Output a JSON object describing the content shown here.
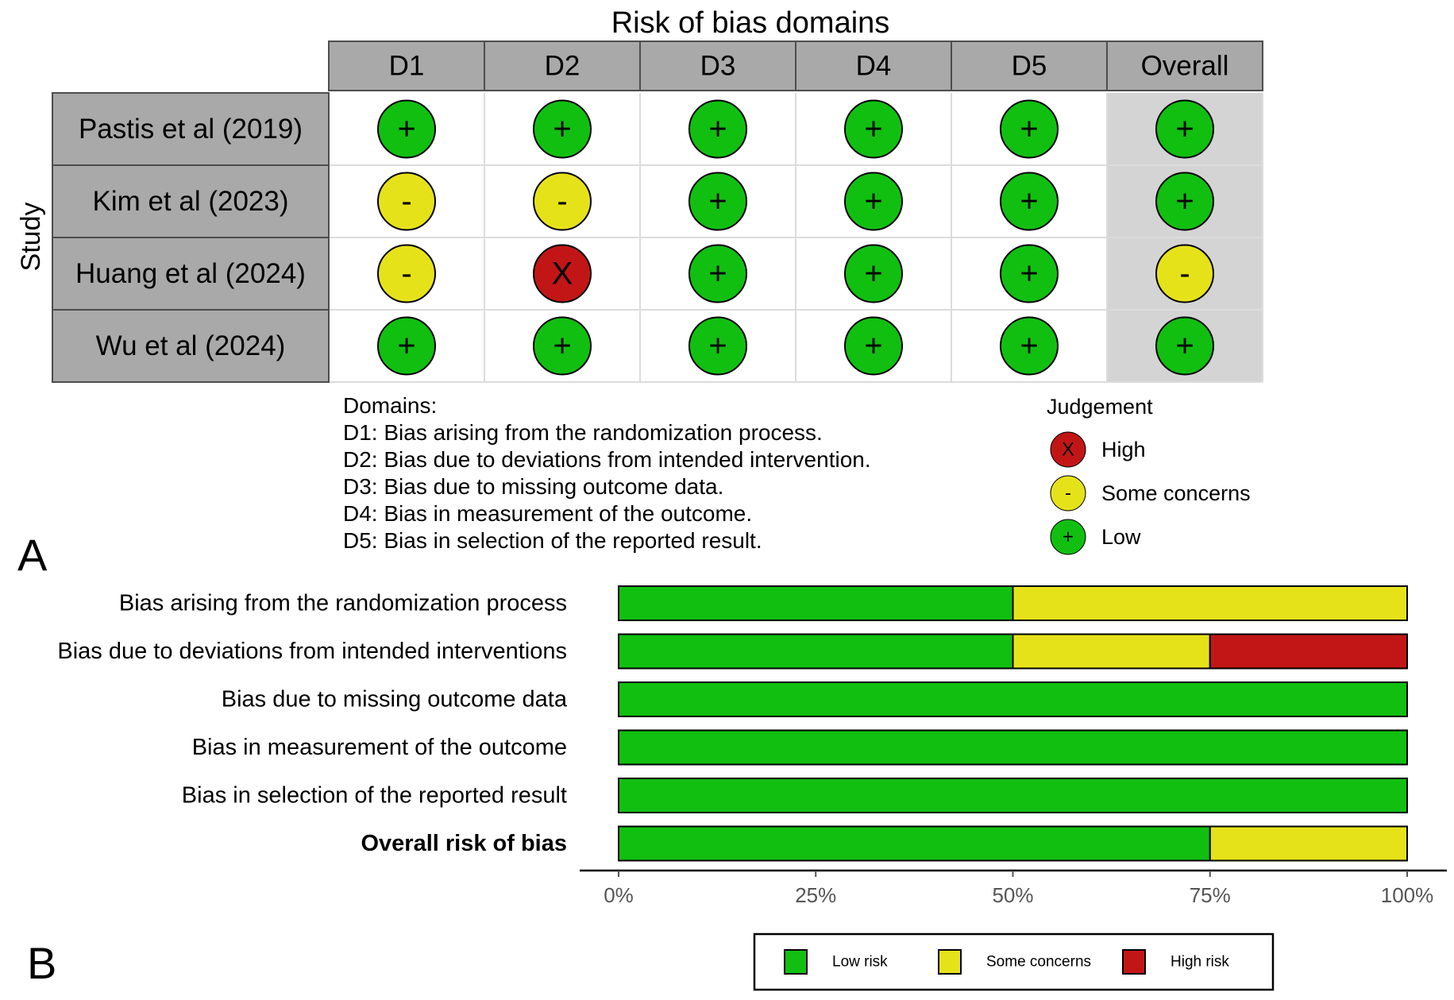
{
  "colors": {
    "low": "#11bf11",
    "some_concerns": "#e6e21a",
    "high": "#c21616",
    "header_fill": "#a9a9a9",
    "row_label_fill": "#a9a9a9",
    "overall_col_fill": "#d4d4d4",
    "grid_line": "#dcdcdc",
    "border": "#4d4d4d"
  },
  "panel_a": {
    "panel_label": "A",
    "title": "Risk of bias domains",
    "y_axis_label": "Study",
    "columns": [
      "D1",
      "D2",
      "D3",
      "D4",
      "D5",
      "Overall"
    ],
    "studies": [
      {
        "name": "Pastis et al (2019)",
        "judgements": [
          "low",
          "low",
          "low",
          "low",
          "low",
          "low"
        ]
      },
      {
        "name": "Kim et al (2023)",
        "judgements": [
          "some",
          "some",
          "low",
          "low",
          "low",
          "low"
        ]
      },
      {
        "name": "Huang et al (2024)",
        "judgements": [
          "some",
          "high",
          "low",
          "low",
          "low",
          "some"
        ]
      },
      {
        "name": "Wu et al (2024)",
        "judgements": [
          "low",
          "low",
          "low",
          "low",
          "low",
          "low"
        ]
      }
    ],
    "symbols": {
      "low": "+",
      "some": "-",
      "high": "X"
    },
    "domains_heading": "Domains:",
    "domains": [
      "D1: Bias arising from the randomization process.",
      "D2: Bias due to deviations from intended intervention.",
      "D3: Bias due to missing outcome data.",
      "D4: Bias in measurement of the outcome.",
      "D5: Bias in selection of the reported result."
    ],
    "judgement_legend": {
      "title": "Judgement",
      "items": [
        {
          "key": "high",
          "label": "High"
        },
        {
          "key": "some",
          "label": "Some concerns"
        },
        {
          "key": "low",
          "label": "Low"
        }
      ]
    }
  },
  "chart_data": {
    "type": "bar",
    "orientation": "horizontal",
    "stacked": true,
    "panel_label": "B",
    "categories": [
      "Bias arising from the randomization process",
      "Bias due to deviations from intended interventions",
      "Bias due to missing outcome data",
      "Bias in measurement of the outcome",
      "Bias in selection of the reported result",
      "Overall risk of bias"
    ],
    "bold_category": "Overall risk of bias",
    "series": [
      {
        "name": "Low risk",
        "key": "low",
        "values": [
          50,
          50,
          100,
          100,
          100,
          75
        ]
      },
      {
        "name": "Some concerns",
        "key": "some",
        "values": [
          50,
          25,
          0,
          0,
          0,
          25
        ]
      },
      {
        "name": "High risk",
        "key": "high",
        "values": [
          0,
          25,
          0,
          0,
          0,
          0
        ]
      }
    ],
    "xlim": [
      0,
      100
    ],
    "x_ticks": [
      "0%",
      "25%",
      "50%",
      "75%",
      "100%"
    ],
    "legend_position": "bottom"
  }
}
